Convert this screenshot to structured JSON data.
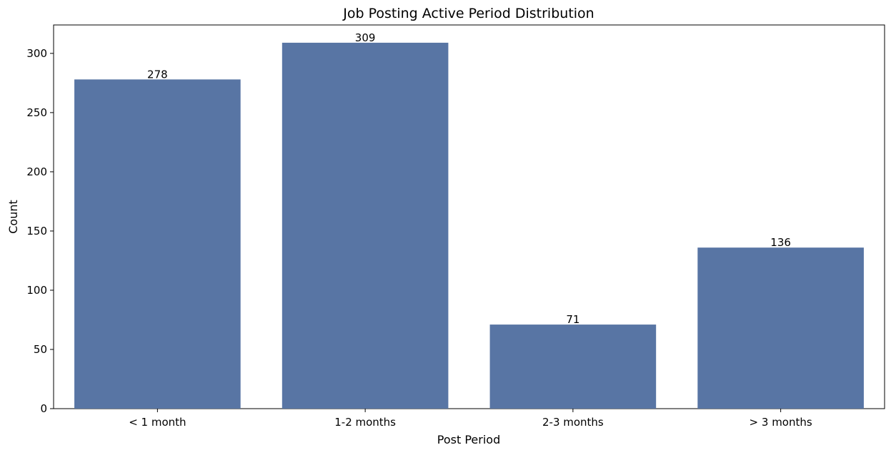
{
  "chart_data": {
    "type": "bar",
    "title": "Job Posting Active Period Distribution",
    "xlabel": "Post Period",
    "ylabel": "Count",
    "categories": [
      "< 1 month",
      "1-2 months",
      "2-3 months",
      "> 3 months"
    ],
    "values": [
      278,
      309,
      71,
      136
    ],
    "value_labels": [
      "278",
      "309",
      "71",
      "136"
    ],
    "ylim": [
      0,
      324
    ],
    "yticks": [
      0,
      50,
      100,
      150,
      200,
      250,
      300
    ],
    "ytick_labels": [
      "0",
      "50",
      "100",
      "150",
      "200",
      "250",
      "300"
    ],
    "bar_color": "#5875a4",
    "grid": false,
    "legend": false
  }
}
